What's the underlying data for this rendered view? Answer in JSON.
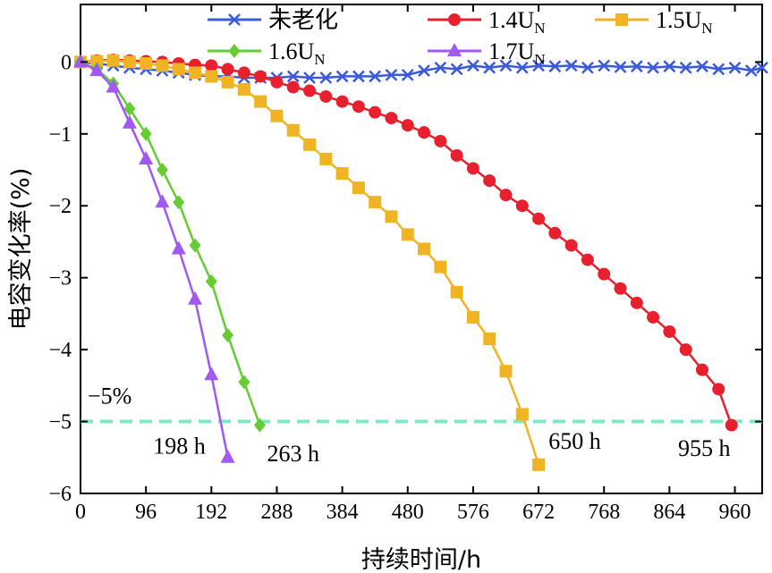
{
  "chart_data": {
    "type": "line",
    "title": "",
    "xlabel": "持续时间/h",
    "ylabel": "电容变化率(%)",
    "xlim": [
      0,
      1000
    ],
    "ylim": [
      -6,
      0.8
    ],
    "x_ticks": [
      0,
      96,
      192,
      288,
      384,
      480,
      576,
      672,
      768,
      864,
      960
    ],
    "y_ticks": [
      0,
      -1,
      -2,
      -3,
      -4,
      -5,
      -6
    ],
    "x_tick_labels": [
      "0",
      "96",
      "192",
      "288",
      "384",
      "480",
      "576",
      "672",
      "768",
      "864",
      "960"
    ],
    "y_tick_labels": [
      "0",
      "−1",
      "−2",
      "−3",
      "−4",
      "−5",
      "−6"
    ],
    "legend_position": "top",
    "series": [
      {
        "name": "未老化",
        "name_main": "未老化",
        "name_sub": "",
        "color": "#3b5bdb",
        "marker": "x",
        "x": [
          0,
          24,
          48,
          72,
          96,
          120,
          144,
          168,
          192,
          216,
          240,
          264,
          288,
          312,
          336,
          360,
          384,
          408,
          432,
          456,
          480,
          504,
          528,
          552,
          576,
          600,
          624,
          648,
          672,
          696,
          720,
          744,
          768,
          792,
          816,
          840,
          864,
          888,
          912,
          936,
          960,
          984,
          1000
        ],
        "y": [
          0,
          -0.02,
          -0.05,
          -0.08,
          -0.1,
          -0.12,
          -0.15,
          -0.18,
          -0.2,
          -0.2,
          -0.22,
          -0.22,
          -0.22,
          -0.2,
          -0.22,
          -0.22,
          -0.2,
          -0.2,
          -0.2,
          -0.18,
          -0.18,
          -0.12,
          -0.08,
          -0.1,
          -0.05,
          -0.08,
          -0.05,
          -0.08,
          -0.05,
          -0.06,
          -0.05,
          -0.08,
          -0.05,
          -0.07,
          -0.06,
          -0.08,
          -0.06,
          -0.08,
          -0.06,
          -0.1,
          -0.08,
          -0.12,
          -0.08
        ]
      },
      {
        "name": "1.4UN",
        "name_main": "1.4U",
        "name_sub": "N",
        "color": "#e8202e",
        "marker": "circle",
        "x": [
          0,
          24,
          48,
          72,
          96,
          120,
          144,
          168,
          192,
          216,
          240,
          264,
          288,
          312,
          336,
          360,
          384,
          408,
          432,
          456,
          480,
          504,
          528,
          552,
          576,
          600,
          624,
          648,
          672,
          696,
          720,
          744,
          768,
          792,
          816,
          840,
          864,
          888,
          912,
          936,
          955
        ],
        "y": [
          0,
          0.02,
          0.03,
          0.02,
          0.01,
          0,
          -0.02,
          -0.04,
          -0.05,
          -0.1,
          -0.15,
          -0.2,
          -0.28,
          -0.35,
          -0.4,
          -0.48,
          -0.55,
          -0.62,
          -0.7,
          -0.78,
          -0.88,
          -0.98,
          -1.1,
          -1.3,
          -1.48,
          -1.65,
          -1.85,
          -2.0,
          -2.18,
          -2.38,
          -2.55,
          -2.75,
          -2.95,
          -3.15,
          -3.35,
          -3.55,
          -3.75,
          -4.0,
          -4.28,
          -4.55,
          -5.05
        ]
      },
      {
        "name": "1.5UN",
        "name_main": "1.5U",
        "name_sub": "N",
        "color": "#f0b323",
        "marker": "square",
        "x": [
          0,
          24,
          48,
          72,
          96,
          120,
          144,
          168,
          192,
          216,
          240,
          264,
          288,
          312,
          336,
          360,
          384,
          408,
          432,
          456,
          480,
          504,
          528,
          552,
          576,
          600,
          624,
          648,
          672
        ],
        "y": [
          0,
          0.01,
          0.02,
          0,
          -0.02,
          -0.05,
          -0.1,
          -0.15,
          -0.2,
          -0.28,
          -0.38,
          -0.55,
          -0.75,
          -0.95,
          -1.15,
          -1.35,
          -1.55,
          -1.75,
          -1.95,
          -2.15,
          -2.4,
          -2.6,
          -2.85,
          -3.2,
          -3.55,
          -3.85,
          -4.3,
          -4.9,
          -5.6
        ]
      },
      {
        "name": "1.6UN",
        "name_main": "1.6U",
        "name_sub": "N",
        "color": "#66cc33",
        "marker": "diamond",
        "x": [
          0,
          24,
          48,
          72,
          96,
          120,
          144,
          168,
          192,
          216,
          240,
          263
        ],
        "y": [
          0,
          -0.1,
          -0.3,
          -0.65,
          -1.0,
          -1.5,
          -1.95,
          -2.55,
          -3.05,
          -3.8,
          -4.45,
          -5.05
        ]
      },
      {
        "name": "1.7UN",
        "name_main": "1.7U",
        "name_sub": "N",
        "color": "#a259f0",
        "marker": "triangle",
        "x": [
          0,
          24,
          48,
          72,
          96,
          120,
          144,
          168,
          192,
          216
        ],
        "y": [
          0,
          -0.12,
          -0.35,
          -0.85,
          -1.35,
          -1.95,
          -2.6,
          -3.3,
          -4.35,
          -5.5
        ]
      }
    ],
    "threshold": {
      "y": -5,
      "label": "−5%",
      "color": "#7de8c8"
    },
    "annotations": [
      {
        "text": "198 h",
        "x": 145,
        "y": -5.35
      },
      {
        "text": "263 h",
        "x": 312,
        "y": -5.45
      },
      {
        "text": "650 h",
        "x": 725,
        "y": -5.28
      },
      {
        "text": "955 h",
        "x": 915,
        "y": -5.38
      }
    ]
  }
}
